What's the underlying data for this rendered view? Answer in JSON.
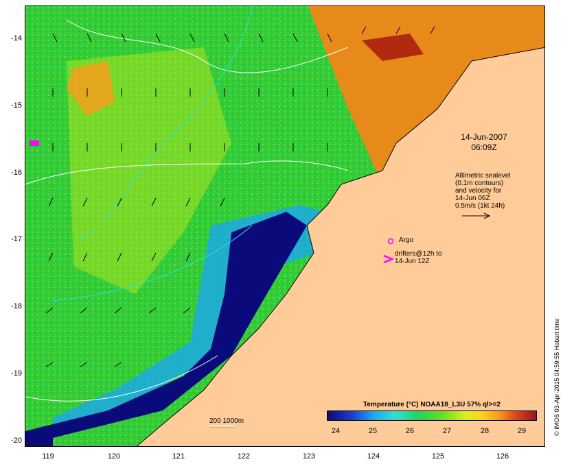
{
  "map": {
    "date_line1": "14-Jun-2007",
    "date_line2": "06:09Z",
    "legend_text": [
      "Altimetric sealevel",
      "(0.1m contours)",
      "and velocity for",
      "14-Jun 06Z",
      "0.5m/s (1kt 24h)"
    ],
    "argo_label": "Argo",
    "drifter_label": [
      "drifters@12h to",
      "14-Jun 12Z"
    ],
    "depth_label": "200  1000m",
    "credit": "© IMOS 03-Apr-2015 04:59:55 Hobart time",
    "y_ticks": [
      "-14",
      "-15",
      "-16",
      "-17",
      "-18",
      "-19",
      "-20"
    ],
    "x_ticks": [
      "119",
      "120",
      "121",
      "122",
      "123",
      "124",
      "125",
      "126"
    ],
    "colors": {
      "land": "#ffcc99",
      "warm": "#ff9a1a",
      "cool": "#22d45a",
      "cold": "#0a0a7a",
      "marker": "#ff00ff"
    },
    "icons": [
      "velocity-arrow-icon",
      "argo-circle-icon",
      "drifter-chevron-icon"
    ]
  },
  "colorbar": {
    "title": "Temperature (°C) NOAA18_L3U 57% ql>=2",
    "ticks": [
      "24",
      "25",
      "26",
      "27",
      "28",
      "29"
    ]
  }
}
